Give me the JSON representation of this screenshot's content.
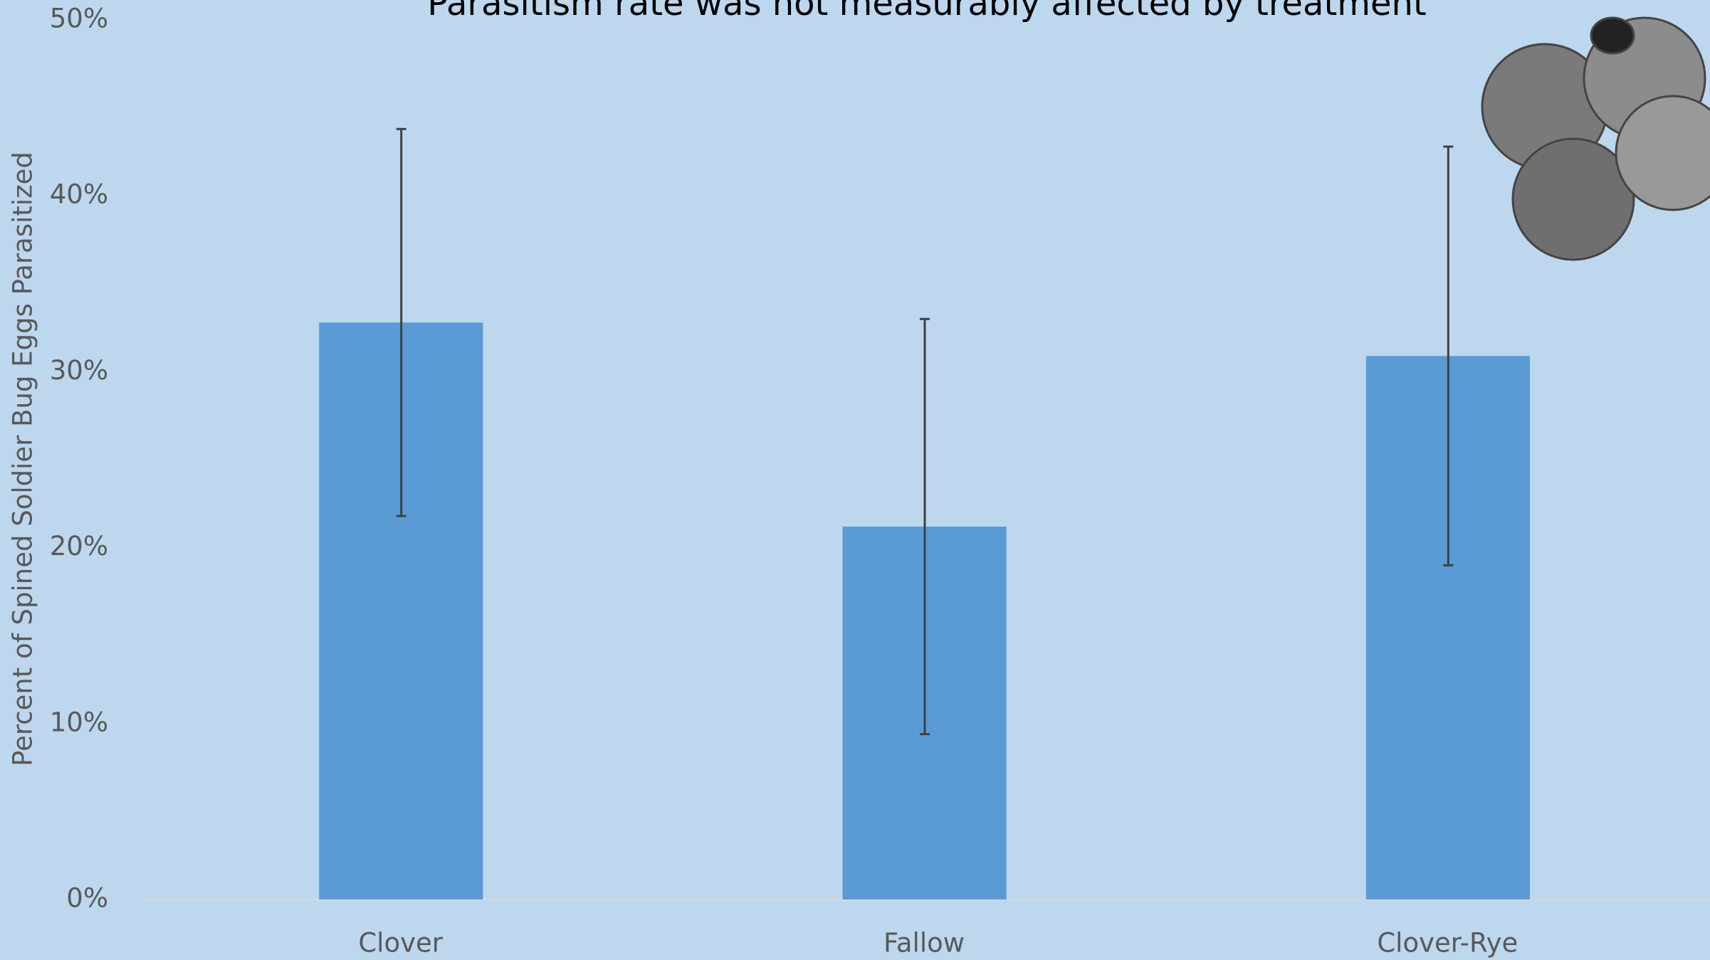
{
  "chart_data": {
    "type": "bar",
    "title": "Parasitism rate was not measurably affected by treatment",
    "y_label": "Percent of Spined Soldier Bug Eggs Parasitized",
    "categories": [
      "Clover",
      "Fallow",
      "Clover-Rye"
    ],
    "values": [
      32.8,
      21.2,
      30.9
    ],
    "errors": [
      11.0,
      11.8,
      11.9
    ],
    "color": "#5b9bd5",
    "ylim": [
      0,
      50
    ],
    "yticks": [
      {
        "value": 0,
        "label": "0%"
      },
      {
        "value": 10,
        "label": "10%"
      },
      {
        "value": 20,
        "label": "20%"
      },
      {
        "value": 30,
        "label": "30%"
      },
      {
        "value": 40,
        "label": "40%"
      },
      {
        "value": 50,
        "label": "50%"
      }
    ],
    "grid": false
  }
}
